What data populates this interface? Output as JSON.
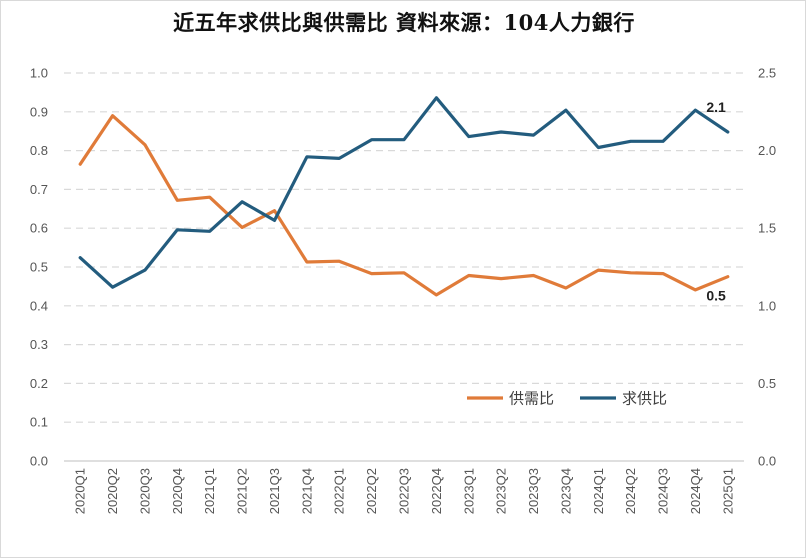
{
  "chart_data": {
    "type": "line",
    "title": "近五年求供比與供需比 資料來源：104人力銀行",
    "categories": [
      "2020Q1",
      "2020Q2",
      "2020Q3",
      "2020Q4",
      "2021Q1",
      "2021Q2",
      "2021Q3",
      "2021Q4",
      "2022Q1",
      "2022Q2",
      "2022Q3",
      "2022Q4",
      "2023Q1",
      "2023Q2",
      "2023Q3",
      "2023Q4",
      "2024Q1",
      "2024Q2",
      "2024Q3",
      "2024Q4",
      "2025Q1"
    ],
    "left_axis": {
      "ylim": [
        0,
        1.0
      ],
      "ticks": [
        "0.0",
        "0.1",
        "0.2",
        "0.3",
        "0.4",
        "0.5",
        "0.6",
        "0.7",
        "0.8",
        "0.9",
        "1.0"
      ]
    },
    "right_axis": {
      "ylim": [
        0,
        2.5
      ],
      "ticks": [
        "0.0",
        "0.5",
        "1.0",
        "1.5",
        "2.0",
        "2.5"
      ]
    },
    "series": [
      {
        "name": "供需比",
        "axis": "left",
        "color": "#E07B39",
        "values": [
          0.765,
          0.89,
          0.815,
          0.672,
          0.68,
          0.602,
          0.645,
          0.513,
          0.515,
          0.483,
          0.485,
          0.428,
          0.478,
          0.47,
          0.478,
          0.446,
          0.492,
          0.485,
          0.483,
          0.441,
          0.475
        ],
        "end_label": "0.5"
      },
      {
        "name": "求供比",
        "axis": "right",
        "color": "#235C7E",
        "values": [
          1.31,
          1.12,
          1.23,
          1.49,
          1.48,
          1.67,
          1.55,
          1.96,
          1.95,
          2.07,
          2.07,
          2.34,
          2.09,
          2.12,
          2.1,
          2.26,
          2.02,
          2.06,
          2.06,
          2.26,
          2.12
        ],
        "end_label": "2.1"
      }
    ],
    "grid": true,
    "legend_position": "lower-right"
  }
}
